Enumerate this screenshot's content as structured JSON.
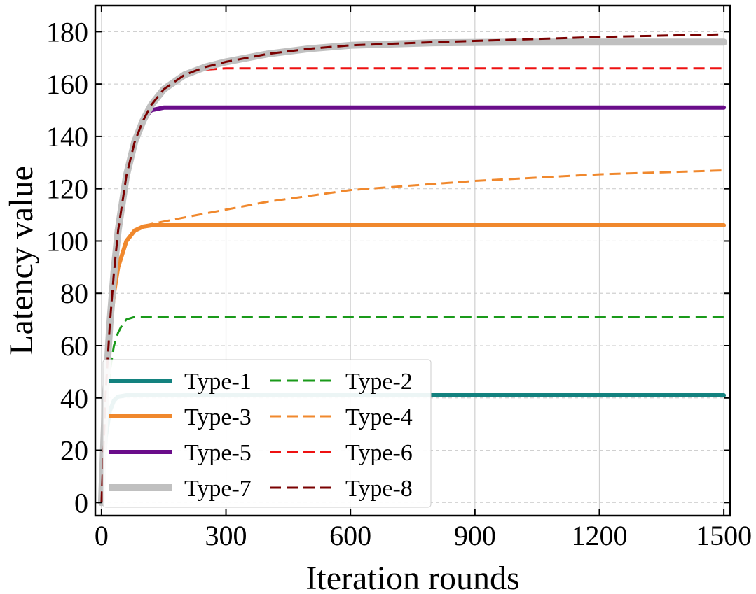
{
  "chart_data": {
    "type": "line",
    "title": "",
    "xlabel": "Iteration rounds",
    "ylabel": "Latency value",
    "xlim": [
      -15,
      1515
    ],
    "ylim": [
      -5,
      190
    ],
    "xticks": [
      0,
      300,
      600,
      900,
      1200,
      1500
    ],
    "xtick_labels": [
      "0",
      "300",
      "600",
      "900",
      "1200",
      "1500"
    ],
    "yticks": [
      0,
      20,
      40,
      60,
      80,
      100,
      120,
      140,
      160,
      180
    ],
    "ytick_labels": [
      "0",
      "20",
      "40",
      "60",
      "80",
      "100",
      "120",
      "140",
      "160",
      "180"
    ],
    "grid": true,
    "legend_position": "lower-left",
    "series": [
      {
        "name": "Type-1",
        "color": "#13827f",
        "style": "solid",
        "width": 6,
        "x": [
          0,
          10,
          20,
          30,
          40,
          60,
          80,
          1500
        ],
        "y": [
          0,
          25,
          35,
          39,
          40.5,
          41,
          41,
          41
        ]
      },
      {
        "name": "Type-2",
        "color": "#1a9a1a",
        "style": "dashed",
        "width": 3,
        "x": [
          0,
          10,
          20,
          30,
          40,
          50,
          60,
          80,
          100,
          1500
        ],
        "y": [
          0,
          30,
          50,
          60,
          65,
          68,
          70,
          71,
          71,
          71
        ]
      },
      {
        "name": "Type-3",
        "color": "#f0882d",
        "style": "solid",
        "width": 6,
        "x": [
          0,
          10,
          20,
          30,
          40,
          60,
          80,
          100,
          120,
          1500
        ],
        "y": [
          0,
          40,
          65,
          80,
          90,
          100,
          104,
          105.5,
          106,
          106
        ]
      },
      {
        "name": "Type-4",
        "color": "#f0882d",
        "style": "dashed",
        "width": 3,
        "x": [
          0,
          10,
          20,
          30,
          40,
          60,
          80,
          100,
          120,
          200,
          300,
          400,
          600,
          900,
          1200,
          1500
        ],
        "y": [
          0,
          40,
          65,
          80,
          90,
          100,
          104,
          105.5,
          106.5,
          109,
          112,
          115,
          119.5,
          123,
          125.5,
          127
        ]
      },
      {
        "name": "Type-5",
        "color": "#6a0d8a",
        "style": "solid",
        "width": 6,
        "x": [
          0,
          10,
          20,
          30,
          40,
          60,
          80,
          100,
          120,
          150,
          1500
        ],
        "y": [
          0,
          42,
          68,
          88,
          104,
          125,
          138,
          146,
          150,
          151,
          151
        ]
      },
      {
        "name": "Type-6",
        "color": "#ee1111",
        "style": "dashed",
        "width": 3,
        "x": [
          0,
          10,
          20,
          30,
          40,
          60,
          80,
          100,
          120,
          150,
          200,
          250,
          300,
          1500
        ],
        "y": [
          0,
          42,
          68,
          88,
          104,
          125,
          138,
          146,
          152,
          158,
          163,
          165.5,
          166,
          166
        ]
      },
      {
        "name": "Type-7",
        "color": "#c0c0c0",
        "style": "solid",
        "width": 10,
        "x": [
          0,
          10,
          20,
          30,
          40,
          60,
          80,
          100,
          120,
          150,
          200,
          250,
          300,
          400,
          500,
          600,
          800,
          1000,
          1200,
          1500
        ],
        "y": [
          0,
          42,
          68,
          88,
          104,
          125,
          138,
          146,
          152,
          158,
          163.5,
          166.5,
          168.5,
          171.5,
          173.5,
          174.8,
          175.8,
          176,
          176,
          176
        ]
      },
      {
        "name": "Type-8",
        "color": "#7a0000",
        "style": "dashed",
        "width": 3,
        "x": [
          0,
          10,
          20,
          30,
          40,
          60,
          80,
          100,
          120,
          150,
          200,
          250,
          300,
          400,
          500,
          600,
          800,
          1000,
          1200,
          1500
        ],
        "y": [
          0,
          42,
          68,
          88,
          104,
          125,
          138,
          146,
          152,
          158,
          163.5,
          166.5,
          168.5,
          171.5,
          173.5,
          174.8,
          176,
          177,
          178,
          179
        ]
      }
    ]
  }
}
